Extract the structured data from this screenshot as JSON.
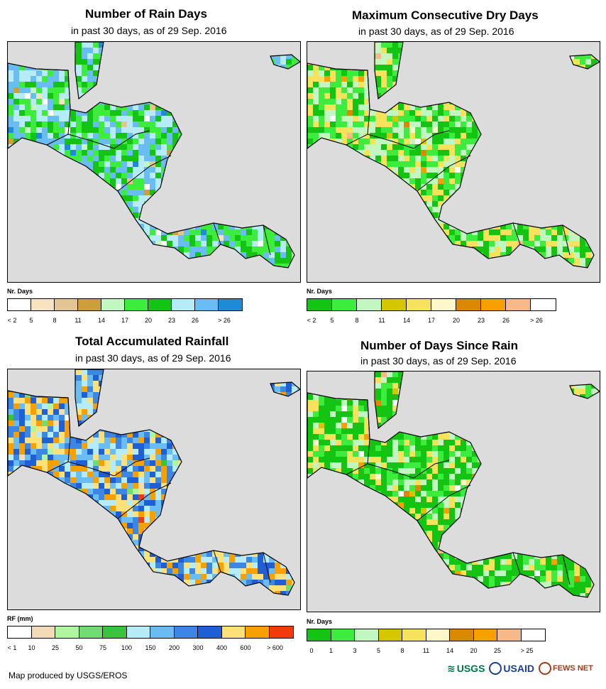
{
  "panels": [
    {
      "id": "rain-days",
      "title": "Number of Rain Days",
      "subtitle": "in past 30 days, as of 29 Sep. 2016",
      "unit_label": "Nr. Days",
      "legend": {
        "colors": [
          "#ffffff",
          "#f7e2c2",
          "#e3c492",
          "#cc9f3a",
          "#c2f7c2",
          "#3ded3d",
          "#13c413",
          "#b6ecf8",
          "#69bdf3",
          "#1f8bd6"
        ],
        "ticks": [
          "< 2",
          "5",
          "8",
          "11",
          "14",
          "17",
          "20",
          "23",
          "26",
          "> 26"
        ]
      },
      "dominant_classes": [
        5,
        6,
        7,
        8
      ]
    },
    {
      "id": "max-dry-days",
      "title": "Maximum Consecutive Dry Days",
      "subtitle": "in past 30 days, as of 29 Sep. 2016",
      "unit_label": "Nr. Days",
      "legend": {
        "colors": [
          "#13c413",
          "#3ded3d",
          "#c2f7c2",
          "#d6c600",
          "#f7e35b",
          "#fcf8c9",
          "#d98a00",
          "#f7a100",
          "#f7b98a",
          "#ffffff"
        ],
        "ticks": [
          "< 2",
          "5",
          "8",
          "11",
          "14",
          "17",
          "20",
          "23",
          "26",
          "> 26"
        ]
      },
      "dominant_classes": [
        0,
        1,
        2,
        4
      ]
    },
    {
      "id": "total-rainfall",
      "title": "Total Accumulated Rainfall",
      "subtitle": "in past 30 days, as of 29 Sep. 2016",
      "unit_label": "RF (mm)",
      "legend": {
        "colors": [
          "#ffffff",
          "#f2dbb6",
          "#b0f5a0",
          "#6fdd6f",
          "#3bc43b",
          "#b6ecf8",
          "#69bdf3",
          "#3b87e3",
          "#1f5fd6",
          "#fce17a",
          "#f7a100",
          "#f23b0b"
        ],
        "ticks": [
          "< 1",
          "10",
          "25",
          "50",
          "75",
          "100",
          "150",
          "200",
          "300",
          "400",
          "600",
          "> 600"
        ]
      },
      "dominant_classes": [
        5,
        6,
        7,
        8,
        9,
        10
      ]
    },
    {
      "id": "days-since-rain",
      "title": "Number of Days Since Rain",
      "subtitle": "in past 30 days, as of 29 Sep. 2016",
      "unit_label": "Nr. Days",
      "legend": {
        "colors": [
          "#13c413",
          "#3ded3d",
          "#c2f7c2",
          "#d6c600",
          "#f7e35b",
          "#fcf8c9",
          "#d98a00",
          "#f7a100",
          "#f7b98a",
          "#ffffff"
        ],
        "ticks": [
          "0",
          "1",
          "3",
          "5",
          "8",
          "11",
          "14",
          "20",
          "25",
          "> 25"
        ]
      },
      "dominant_classes": [
        0,
        0,
        0,
        1,
        2,
        4
      ]
    }
  ],
  "map_colors": {
    "sea": "#dcdcdc",
    "border": "#000000"
  },
  "footer": "Map produced by USGS/EROS",
  "logos": {
    "usgs": "USGS",
    "usaid": "USAID",
    "fews": "FEWS NET"
  }
}
